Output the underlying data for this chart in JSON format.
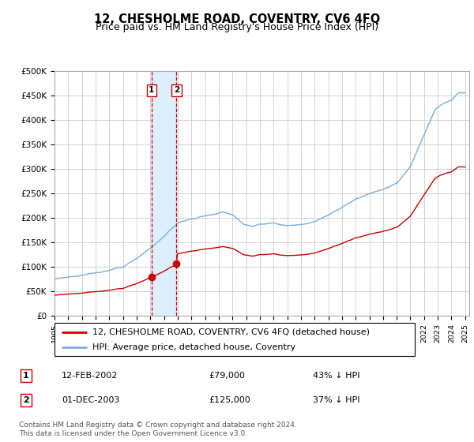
{
  "title": "12, CHESHOLME ROAD, COVENTRY, CV6 4FQ",
  "subtitle": "Price paid vs. HM Land Registry's House Price Index (HPI)",
  "ylim": [
    0,
    500000
  ],
  "yticks": [
    0,
    50000,
    100000,
    150000,
    200000,
    250000,
    300000,
    350000,
    400000,
    450000,
    500000
  ],
  "ytick_labels": [
    "£0",
    "£50K",
    "£100K",
    "£150K",
    "£200K",
    "£250K",
    "£300K",
    "£350K",
    "£400K",
    "£450K",
    "£500K"
  ],
  "t1_year": 2002.0833,
  "t2_year": 2003.9167,
  "price1": 79000,
  "price2": 125000,
  "legend_line1": "12, CHESHOLME ROAD, COVENTRY, CV6 4FQ (detached house)",
  "legend_line2": "HPI: Average price, detached house, Coventry",
  "table_rows": [
    [
      "1",
      "12-FEB-2002",
      "£79,000",
      "43% ↓ HPI"
    ],
    [
      "2",
      "01-DEC-2003",
      "£125,000",
      "37% ↓ HPI"
    ]
  ],
  "footer1": "Contains HM Land Registry data © Crown copyright and database right 2024.",
  "footer2": "This data is licensed under the Open Government Licence v3.0.",
  "price_color": "#cc0000",
  "hpi_color": "#7aaddb",
  "span_color": "#ddeeff",
  "vline_color": "#cc0000",
  "grid_color": "#cccccc",
  "background_color": "#ffffff",
  "title_fontsize": 10.5,
  "subtitle_fontsize": 9,
  "tick_fontsize": 7.5,
  "legend_fontsize": 8,
  "table_fontsize": 8,
  "footer_fontsize": 6.5
}
